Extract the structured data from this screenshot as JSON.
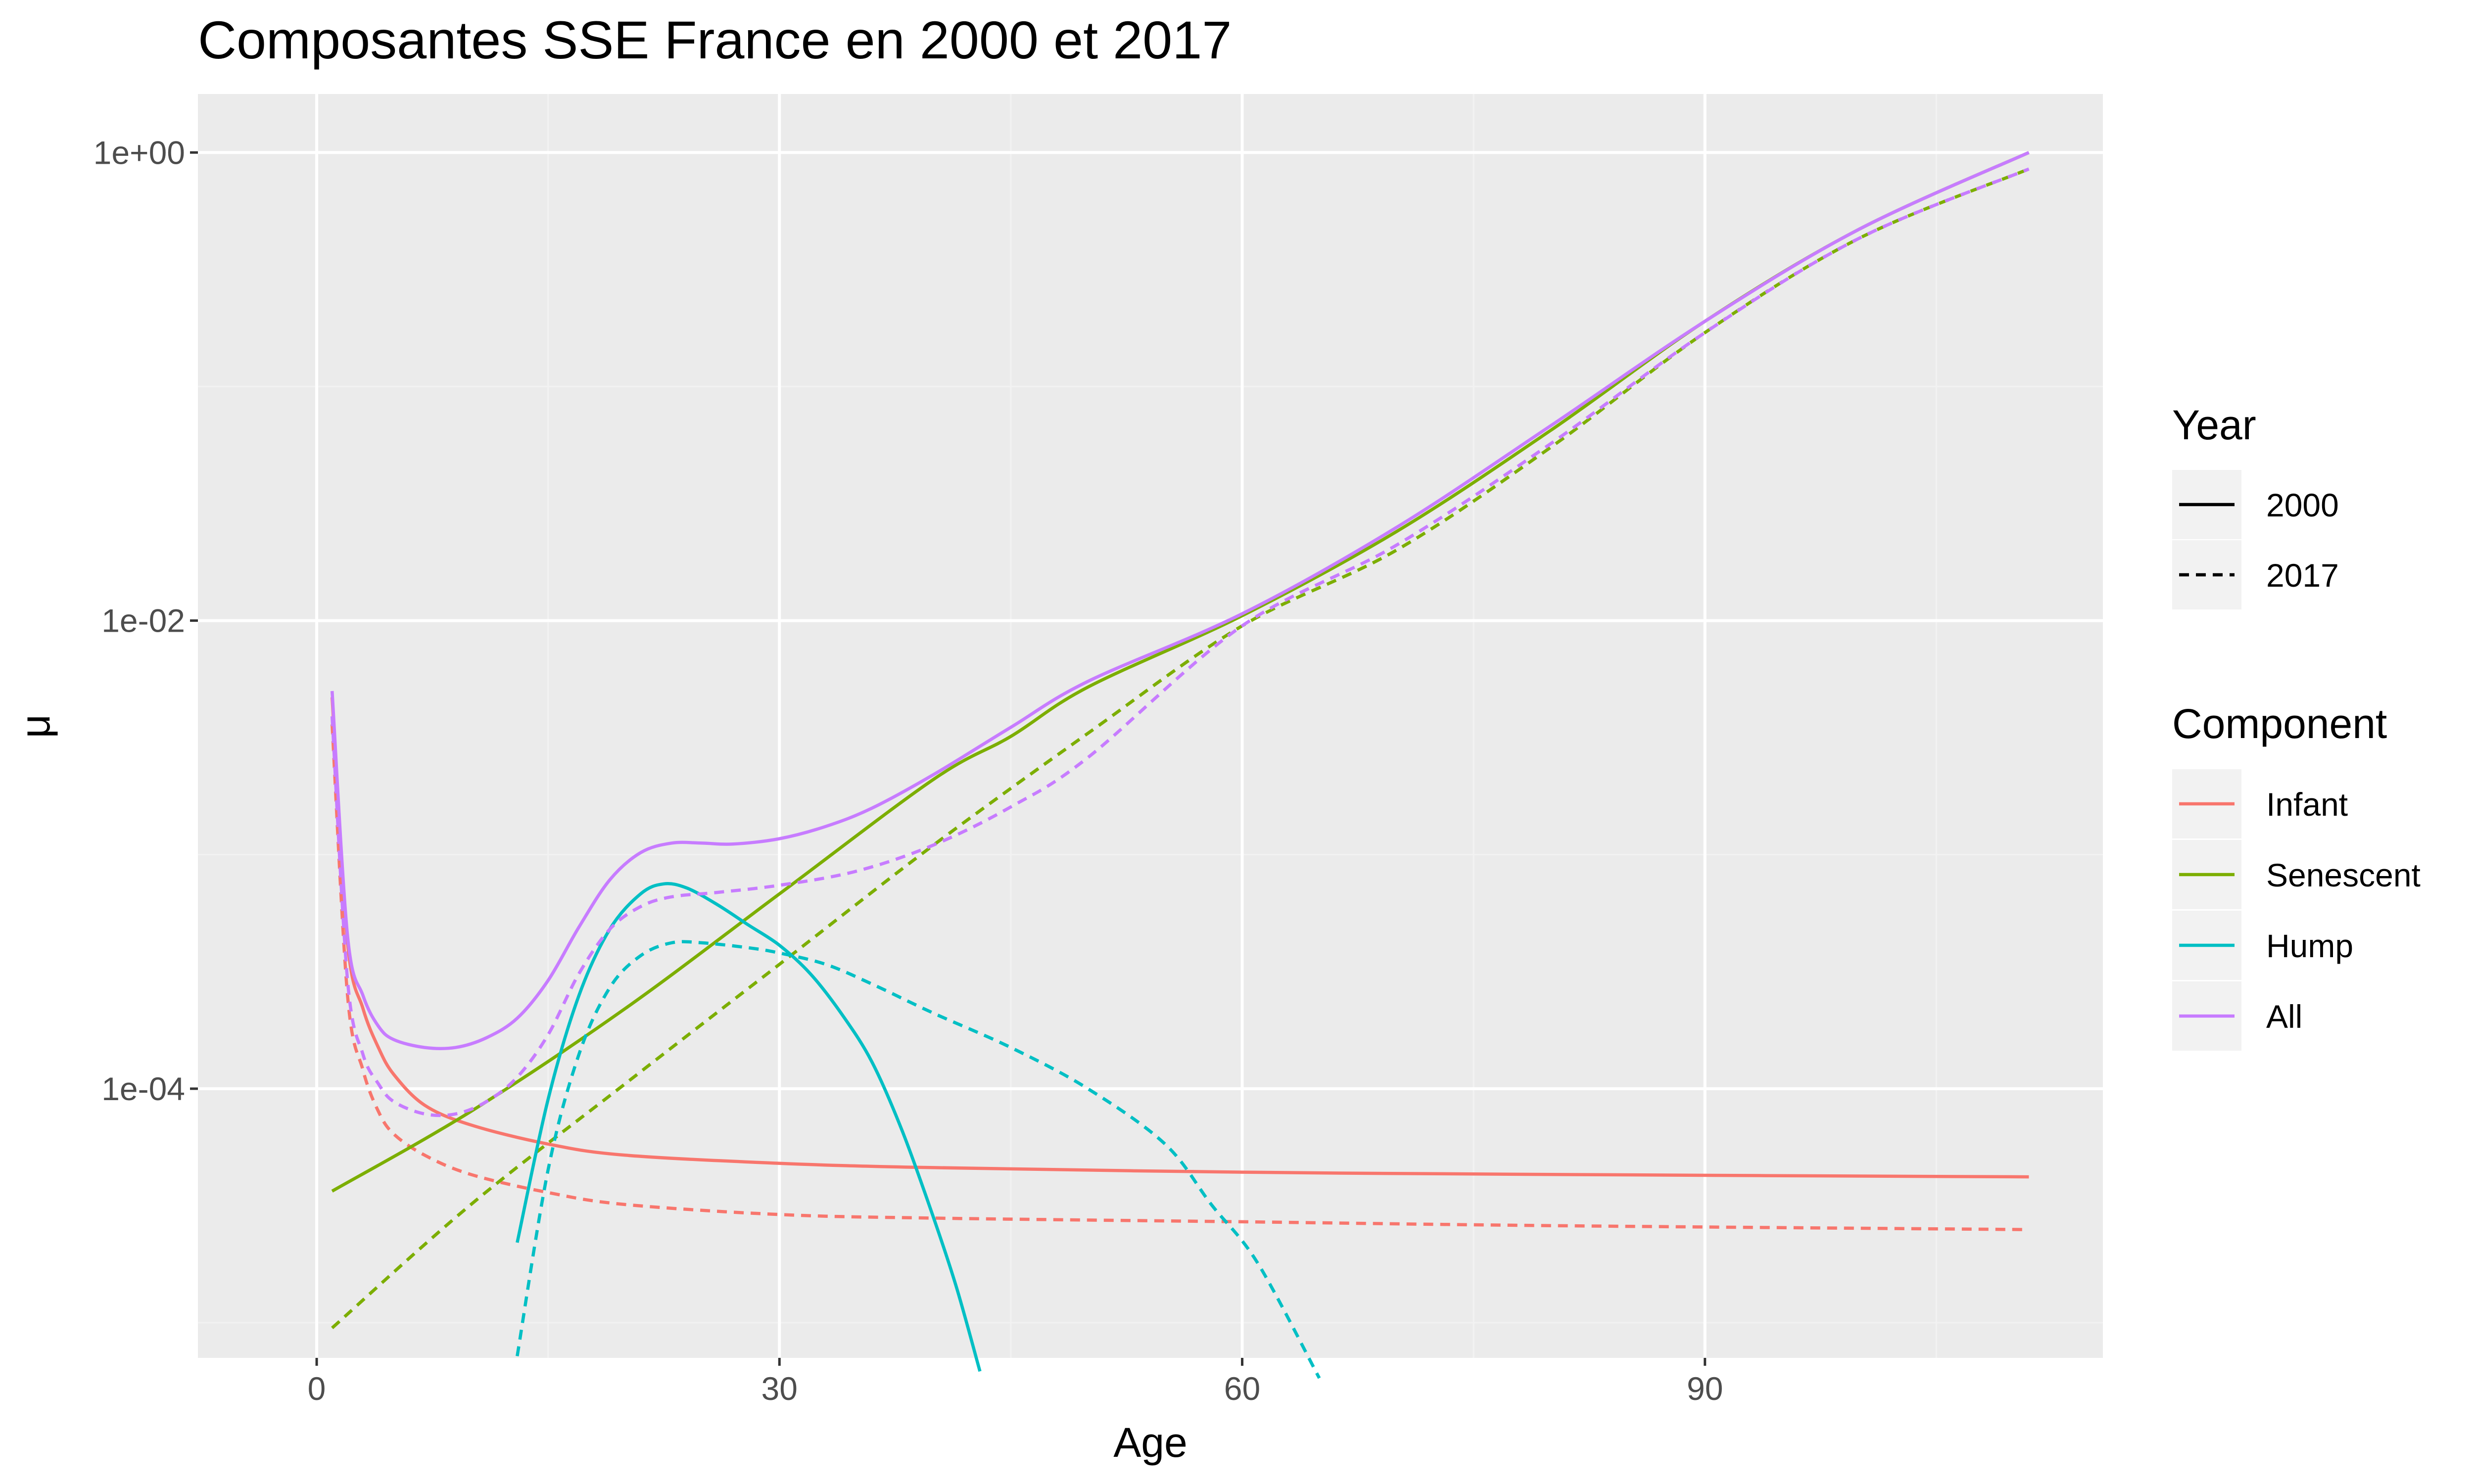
{
  "chart_data": {
    "type": "line",
    "title": "Composantes SSE France en 2000 et 2017",
    "xlabel": "Age",
    "ylabel": "μ",
    "xlim": [
      -7.7,
      115.8
    ],
    "ylim_log10": [
      -5.15,
      0.25
    ],
    "y_scale": "log10",
    "x_ticks": [
      0,
      30,
      60,
      90
    ],
    "x_tick_labels": [
      "0",
      "30",
      "60",
      "90"
    ],
    "y_ticks": [
      0.0001,
      0.01,
      1
    ],
    "y_tick_labels": [
      "1e-04",
      "1e-02",
      "1e+00"
    ],
    "grid": true,
    "legend_position": "right",
    "legends": {
      "year": {
        "title": "Year",
        "entries": [
          {
            "label": "2000",
            "linetype": "solid"
          },
          {
            "label": "2017",
            "linetype": "dashed"
          }
        ]
      },
      "component": {
        "title": "Component",
        "entries": [
          {
            "label": "Infant",
            "color": "#F8766D"
          },
          {
            "label": "Senescent",
            "color": "#7CAE00"
          },
          {
            "label": "Hump",
            "color": "#00BFC4"
          },
          {
            "label": "All",
            "color": "#C77CFF"
          }
        ]
      }
    },
    "series": [
      {
        "component": "Infant",
        "year": "2000",
        "color": "#F8766D",
        "linetype": "solid",
        "points": [
          [
            1,
            0.0047
          ],
          [
            2,
            0.00042
          ],
          [
            3,
            0.00022
          ],
          [
            4,
            0.00015
          ],
          [
            5,
            0.000115
          ],
          [
            7,
            8.5e-05
          ],
          [
            10,
            7e-05
          ],
          [
            15,
            5.8e-05
          ],
          [
            20,
            5.2e-05
          ],
          [
            30,
            4.8e-05
          ],
          [
            40,
            4.6e-05
          ],
          [
            60,
            4.4e-05
          ],
          [
            80,
            4.3e-05
          ],
          [
            111,
            4.2e-05
          ]
        ]
      },
      {
        "component": "Infant",
        "year": "2017",
        "color": "#F8766D",
        "linetype": "dashed",
        "points": [
          [
            1,
            0.0036
          ],
          [
            2,
            0.00025
          ],
          [
            3,
            0.00012
          ],
          [
            4,
            8e-05
          ],
          [
            5,
            6.4e-05
          ],
          [
            7,
            5.2e-05
          ],
          [
            10,
            4.3e-05
          ],
          [
            15,
            3.6e-05
          ],
          [
            20,
            3.2e-05
          ],
          [
            30,
            2.9e-05
          ],
          [
            40,
            2.8e-05
          ],
          [
            60,
            2.7e-05
          ],
          [
            80,
            2.6e-05
          ],
          [
            111,
            2.5e-05
          ]
        ]
      },
      {
        "component": "Senescent",
        "year": "2000",
        "color": "#7CAE00",
        "linetype": "solid",
        "points": [
          [
            1,
            3.65e-05
          ],
          [
            10,
            8e-05
          ],
          [
            20,
            0.00022
          ],
          [
            30,
            0.00068
          ],
          [
            40,
            0.0021
          ],
          [
            45,
            0.0032
          ],
          [
            50,
            0.0052
          ],
          [
            60,
            0.0105
          ],
          [
            70,
            0.024
          ],
          [
            80,
            0.065
          ],
          [
            90,
            0.19
          ],
          [
            100,
            0.47
          ],
          [
            111,
            1.0
          ]
        ]
      },
      {
        "component": "Senescent",
        "year": "2017",
        "color": "#7CAE00",
        "linetype": "dashed",
        "points": [
          [
            1,
            9.5e-06
          ],
          [
            10,
            3.2e-05
          ],
          [
            20,
            0.000105
          ],
          [
            30,
            0.00034
          ],
          [
            40,
            0.0011
          ],
          [
            50,
            0.0033
          ],
          [
            60,
            0.0095
          ],
          [
            70,
            0.02
          ],
          [
            80,
            0.055
          ],
          [
            90,
            0.17
          ],
          [
            100,
            0.43
          ],
          [
            111,
            0.85
          ]
        ]
      },
      {
        "component": "Hump",
        "year": "2000",
        "color": "#00BFC4",
        "linetype": "solid",
        "points": [
          [
            13,
            2.2e-05
          ],
          [
            15,
            9e-05
          ],
          [
            17,
            0.00025
          ],
          [
            19,
            0.00048
          ],
          [
            21,
            0.00068
          ],
          [
            22.5,
            0.00075
          ],
          [
            24,
            0.00072
          ],
          [
            26,
            0.00061
          ],
          [
            28,
            0.0005
          ],
          [
            30,
            0.00041
          ],
          [
            32,
            0.00031
          ],
          [
            34,
            0.00021
          ],
          [
            36,
            0.00013
          ],
          [
            38,
            6.5e-05
          ],
          [
            40,
            2.8e-05
          ],
          [
            41.5,
            1.4e-05
          ],
          [
            43,
            6.2e-06
          ]
        ]
      },
      {
        "component": "Hump",
        "year": "2017",
        "color": "#00BFC4",
        "linetype": "dashed",
        "points": [
          [
            13,
            7.2e-06
          ],
          [
            15,
            4.5e-05
          ],
          [
            17,
            0.00014
          ],
          [
            19,
            0.00027
          ],
          [
            21,
            0.00037
          ],
          [
            23,
            0.00042
          ],
          [
            25,
            0.00042
          ],
          [
            28,
            0.0004
          ],
          [
            30,
            0.00038
          ],
          [
            33,
            0.00034
          ],
          [
            36,
            0.00028
          ],
          [
            40,
            0.00021
          ],
          [
            45,
            0.00015
          ],
          [
            50,
            0.0001
          ],
          [
            55,
            5.8e-05
          ],
          [
            58,
            3.2e-05
          ],
          [
            61,
            1.8e-05
          ],
          [
            65,
            5.8e-06
          ]
        ]
      },
      {
        "component": "All",
        "year": "2000",
        "color": "#C77CFF",
        "linetype": "solid",
        "points": [
          [
            1,
            0.005
          ],
          [
            2,
            0.00045
          ],
          [
            3,
            0.00025
          ],
          [
            4,
            0.000185
          ],
          [
            5,
            0.000162
          ],
          [
            7,
            0.00015
          ],
          [
            9,
            0.00015
          ],
          [
            11,
            0.000165
          ],
          [
            13,
            0.0002
          ],
          [
            15,
            0.00029
          ],
          [
            17,
            0.00049
          ],
          [
            19,
            0.00078
          ],
          [
            21,
            0.00102
          ],
          [
            23,
            0.00112
          ],
          [
            25,
            0.00112
          ],
          [
            27,
            0.00111
          ],
          [
            30,
            0.00117
          ],
          [
            33,
            0.00132
          ],
          [
            36,
            0.00158
          ],
          [
            40,
            0.0022
          ],
          [
            45,
            0.0035
          ],
          [
            50,
            0.0055
          ],
          [
            60,
            0.0107
          ],
          [
            70,
            0.025
          ],
          [
            80,
            0.068
          ],
          [
            90,
            0.19
          ],
          [
            100,
            0.47
          ],
          [
            111,
            1.0
          ]
        ]
      },
      {
        "component": "All",
        "year": "2017",
        "color": "#C77CFF",
        "linetype": "dashed",
        "points": [
          [
            1,
            0.0039
          ],
          [
            2,
            0.00029
          ],
          [
            3,
            0.00014
          ],
          [
            4,
            0.000105
          ],
          [
            5,
            8.8e-05
          ],
          [
            7,
            7.8e-05
          ],
          [
            9,
            7.8e-05
          ],
          [
            11,
            8.8e-05
          ],
          [
            13,
            0.000112
          ],
          [
            15,
            0.00017
          ],
          [
            17,
            0.00031
          ],
          [
            19,
            0.00048
          ],
          [
            21,
            0.0006
          ],
          [
            23,
            0.00066
          ],
          [
            26,
            0.00069
          ],
          [
            30,
            0.00074
          ],
          [
            35,
            0.00085
          ],
          [
            40,
            0.0011
          ],
          [
            45,
            0.0016
          ],
          [
            50,
            0.0026
          ],
          [
            60,
            0.0095
          ],
          [
            70,
            0.021
          ],
          [
            80,
            0.057
          ],
          [
            90,
            0.17
          ],
          [
            100,
            0.43
          ],
          [
            111,
            0.85
          ]
        ]
      }
    ]
  }
}
